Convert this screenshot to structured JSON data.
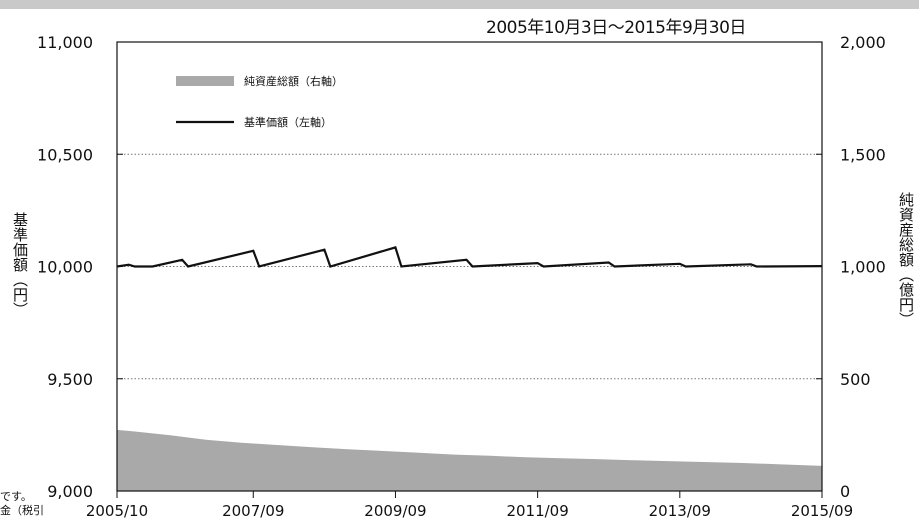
{
  "period_text": "2005年10月3日～2015年9月30日",
  "left_axis_label": "基準価額（円）",
  "right_axis_label": "純資産総額（億円）",
  "edge_fragment": "です。\n金（税引",
  "chart_data": {
    "type": "line",
    "title": "",
    "x_tick_labels": [
      "2005/10",
      "2007/09",
      "2009/09",
      "2011/09",
      "2013/09",
      "2015/09"
    ],
    "x_ticks": [
      "2005-10",
      "2007-09",
      "2009-09",
      "2011-09",
      "2013-09",
      "2015-09"
    ],
    "y_left": {
      "label": "基準価額（円）",
      "lim": [
        9000,
        11000
      ],
      "ticks": [
        9000,
        9500,
        10000,
        10500,
        11000
      ],
      "tick_labels": [
        "9,000",
        "9,500",
        "10,000",
        "10,500",
        "11,000"
      ]
    },
    "y_right": {
      "label": "純資産総額（億円）",
      "lim": [
        0,
        2000
      ],
      "ticks": [
        0,
        500,
        1000,
        1500,
        2000
      ],
      "tick_labels": [
        "0",
        "500",
        "1,000",
        "1,500",
        "2,000"
      ]
    },
    "grid": "horizontal dotted",
    "legend_position": "top-left",
    "series": [
      {
        "name": "純資産総額（右軸）",
        "type": "area",
        "axis": "right",
        "color": "#a9a9a9",
        "points": [
          [
            "2005-10",
            272
          ],
          [
            "2006-01",
            265
          ],
          [
            "2006-07",
            248
          ],
          [
            "2007-01",
            228
          ],
          [
            "2007-07",
            215
          ],
          [
            "2008-01",
            205
          ],
          [
            "2008-07",
            195
          ],
          [
            "2009-01",
            186
          ],
          [
            "2009-07",
            178
          ],
          [
            "2010-01",
            170
          ],
          [
            "2010-07",
            162
          ],
          [
            "2011-01",
            157
          ],
          [
            "2011-07",
            150
          ],
          [
            "2012-01",
            146
          ],
          [
            "2012-07",
            142
          ],
          [
            "2013-01",
            137
          ],
          [
            "2013-07",
            133
          ],
          [
            "2014-01",
            129
          ],
          [
            "2014-07",
            125
          ],
          [
            "2015-01",
            120
          ],
          [
            "2015-09",
            112
          ]
        ]
      },
      {
        "name": "基準価額（左軸）",
        "type": "line",
        "axis": "left",
        "color": "#111111",
        "points": [
          [
            "2005-10",
            10000
          ],
          [
            "2005-12",
            10008
          ],
          [
            "2006-01",
            10000
          ],
          [
            "2006-04",
            10000
          ],
          [
            "2006-09",
            10030
          ],
          [
            "2006-10",
            10000
          ],
          [
            "2007-09",
            10070
          ],
          [
            "2007-10",
            10000
          ],
          [
            "2008-09",
            10075
          ],
          [
            "2008-10",
            10000
          ],
          [
            "2009-09",
            10085
          ],
          [
            "2009-10",
            10000
          ],
          [
            "2010-09",
            10030
          ],
          [
            "2010-10",
            10000
          ],
          [
            "2011-09",
            10015
          ],
          [
            "2011-10",
            10000
          ],
          [
            "2012-09",
            10018
          ],
          [
            "2012-10",
            10000
          ],
          [
            "2013-09",
            10012
          ],
          [
            "2013-10",
            10000
          ],
          [
            "2014-09",
            10010
          ],
          [
            "2014-10",
            10000
          ],
          [
            "2015-09",
            10002
          ]
        ]
      }
    ]
  }
}
